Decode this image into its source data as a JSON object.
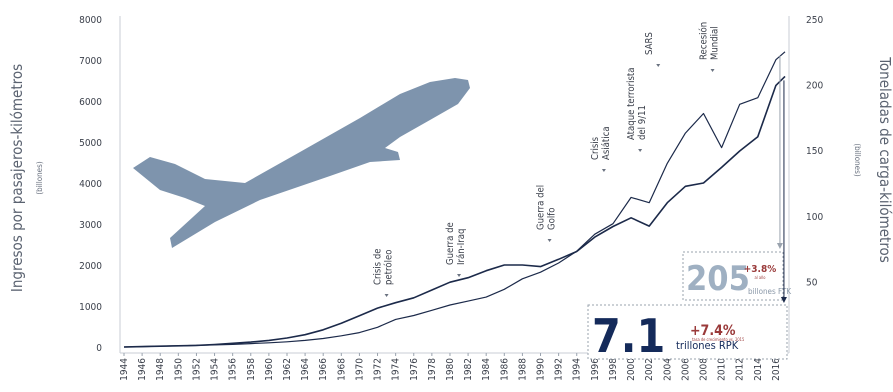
{
  "chart_data": {
    "type": "line",
    "x": [
      1944,
      1946,
      1948,
      1950,
      1952,
      1954,
      1956,
      1958,
      1960,
      1962,
      1964,
      1966,
      1968,
      1970,
      1972,
      1974,
      1976,
      1978,
      1980,
      1982,
      1984,
      1986,
      1988,
      1990,
      1992,
      1994,
      1996,
      1998,
      2000,
      2002,
      2004,
      2006,
      2008,
      2010,
      2012,
      2014,
      2016,
      2017
    ],
    "x_ticks": [
      1944,
      1946,
      1948,
      1950,
      1952,
      1954,
      1956,
      1958,
      1960,
      1962,
      1964,
      1966,
      1968,
      1970,
      1972,
      1974,
      1976,
      1978,
      1980,
      1982,
      1984,
      1986,
      1988,
      1990,
      1992,
      1994,
      1996,
      1998,
      2000,
      2002,
      2004,
      2006,
      2008,
      2010,
      2012,
      2014,
      2016
    ],
    "xlim": [
      1944,
      2017
    ],
    "y_left": {
      "label": "Ingresos por pasajeros-kilómetros",
      "unit": "(billones)",
      "ticks": [
        0,
        1000,
        2000,
        3000,
        4000,
        5000,
        6000,
        7000,
        8000
      ],
      "lim": [
        0,
        8000
      ]
    },
    "y_right": {
      "label": "Toneladas de carga-kilómetros",
      "unit": "(billones)",
      "ticks": [
        50,
        100,
        150,
        200,
        250
      ],
      "lim": [
        0,
        250
      ]
    },
    "series": [
      {
        "axis": "left",
        "color": "#1c2a4a",
        "values": [
          0,
          10,
          20,
          30,
          40,
          60,
          90,
          120,
          160,
          220,
          300,
          420,
          580,
          760,
          950,
          1080,
          1200,
          1390,
          1580,
          1690,
          1860,
          2000,
          2000,
          1960,
          2140,
          2330,
          2680,
          2940,
          3150,
          2950,
          3520,
          3920,
          4000,
          4380,
          4780,
          5130,
          6380,
          6600
        ]
      },
      {
        "axis": "right",
        "color": "#1c2a4a",
        "values": [
          0,
          0.3,
          0.6,
          0.9,
          1.2,
          1.6,
          2,
          2.6,
          3.2,
          4,
          5,
          6.5,
          8.5,
          11,
          15,
          21,
          24,
          28,
          32,
          35,
          38,
          44,
          52,
          57,
          64,
          73,
          86,
          94,
          114,
          110,
          140,
          163,
          178,
          152,
          185,
          190,
          219,
          225
        ]
      }
    ],
    "annotations": [
      {
        "text": [
          "Crisis de",
          "petróleo"
        ],
        "x": 1973
      },
      {
        "text": [
          "Guerra de",
          "Irán-Iraq"
        ],
        "x": 1981
      },
      {
        "text": [
          "Guerra del",
          "Golfo"
        ],
        "x": 1991
      },
      {
        "text": [
          "Crisis",
          "Asiática"
        ],
        "x": 1997
      },
      {
        "text": [
          "Ataque terrorista",
          "del 9/11"
        ],
        "x": 2001
      },
      {
        "text": [
          "SARS"
        ],
        "x": 2003
      },
      {
        "text": [
          "Recesión",
          "Mundial"
        ],
        "x": 2009
      }
    ],
    "callouts": {
      "ftk": {
        "value": "205",
        "growth": "+3.8%",
        "growth_note": "al año",
        "unit": "billones FTK"
      },
      "rpk": {
        "value": "7.1",
        "growth": "+7.4%",
        "growth_note": "tasa de crecimiento vs. 2015",
        "unit": "trillones RPK"
      }
    },
    "colors": {
      "line": "#1c2a4a",
      "plane": "#7e94ad",
      "growth": "#9a3a3a",
      "ftk_number": "#9fb0c2",
      "rpk_number": "#142a5a",
      "axis_text": "#3a3f4a"
    }
  }
}
